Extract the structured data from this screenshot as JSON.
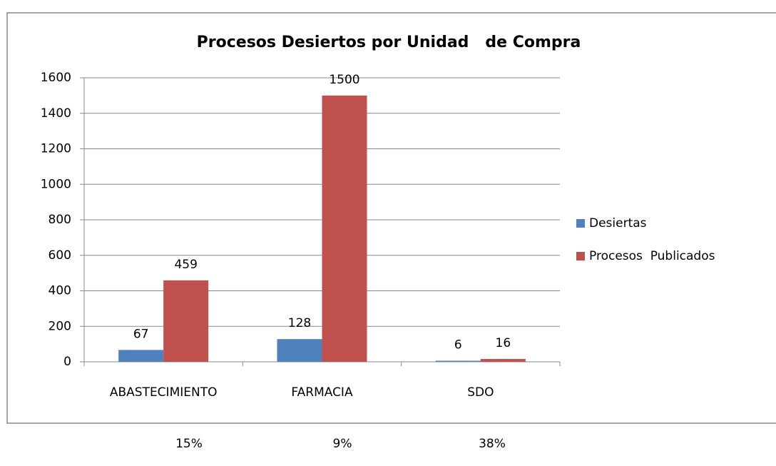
{
  "chart_data": {
    "type": "bar",
    "title": "Procesos Desiertos por Unidad   de Compra",
    "categories": [
      "ABASTECIMIENTO",
      "FARMACIA",
      "SDO"
    ],
    "series": [
      {
        "name": "Desiertas",
        "color": "#4f81bd",
        "values": [
          67,
          128,
          6
        ]
      },
      {
        "name": "Procesos  Publicados",
        "color": "#c0504d",
        "values": [
          459,
          1500,
          16
        ]
      }
    ],
    "ylim": [
      0,
      1600
    ],
    "yticks": [
      0,
      200,
      400,
      600,
      800,
      1000,
      1200,
      1400,
      1600
    ],
    "grid": true,
    "legend": "right"
  },
  "percentages": [
    "15%",
    "9%",
    "38%"
  ]
}
